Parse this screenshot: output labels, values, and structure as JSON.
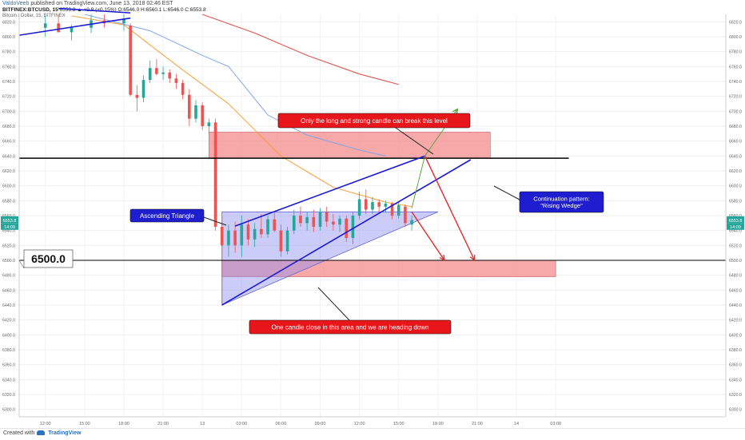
{
  "header": {
    "author": "ValdoVeeb",
    "published": "published on TradingView.com, June 13, 2018 02:46 EST",
    "symbol": "BITFINEX:BTCUSD, 15",
    "ohlc": "6553.8 ▲ +9.9 (+0.15%) O:6546.0 H:6560.1 L:6546.0 C:6553.8",
    "indicator": "Bitcoin / Dollar, 15, BITFINEX"
  },
  "footer": {
    "created_with": "Created with",
    "brand": "TradingView"
  },
  "colors": {
    "up": "#26a69a",
    "down": "#ef5350",
    "ema_fast": "#f59c33",
    "ema_mid": "#7ea5e8",
    "ema_slow": "#e0403a",
    "zone": "#f48c8c",
    "triangle": "#8f8ff0",
    "arrow_red": "#e12a2a",
    "arrow_green": "#4aa535",
    "callout_red": "#e8161b",
    "callout_blue": "#1e1ed0"
  },
  "annotations": {
    "callout_break": "Only the long and strong candle can break this level",
    "callout_ascending": "Ascending Triangle",
    "callout_continuation": "Continuation pattern:\n\"Rising Wedge\"",
    "callout_close": "One candle close in this area and we are heading down",
    "level_box": "6500.0",
    "price_tag_current": "6553.8",
    "price_tag_timer": "14:09"
  },
  "chart_data": {
    "type": "candlestick",
    "title": "BITFINEX:BTCUSD, 15",
    "y_ticks": [
      6820,
      6800,
      6780,
      6760,
      6740,
      6720,
      6700,
      6680,
      6660,
      6640,
      6620,
      6600,
      6580,
      6560,
      6540,
      6520,
      6500,
      6480,
      6460,
      6440,
      6420,
      6400,
      6380,
      6360,
      6340,
      6320,
      6300
    ],
    "ylim": [
      6290,
      6830
    ],
    "x_ticks": [
      "12:00",
      "15:00",
      "18:00",
      "21:00",
      "13",
      "03:00",
      "06:00",
      "09:00",
      "12:00",
      "15:00",
      "18:00",
      "21:00",
      "14",
      "03:00"
    ],
    "x_range_hours": [
      -14,
      40
    ],
    "horizontal_levels": [
      6637,
      6500
    ],
    "zones": [
      {
        "from": 6637,
        "to": 6672
      },
      {
        "from": 6478,
        "to": 6500
      }
    ],
    "candles": [
      {
        "t": -12.0,
        "o": 6812,
        "h": 6828,
        "l": 6800,
        "c": 6818
      },
      {
        "t": -11.0,
        "o": 6818,
        "h": 6830,
        "l": 6808,
        "c": 6806
      },
      {
        "t": -10.0,
        "o": 6806,
        "h": 6816,
        "l": 6795,
        "c": 6812
      },
      {
        "t": -8.5,
        "o": 6812,
        "h": 6830,
        "l": 6805,
        "c": 6822
      },
      {
        "t": -7.5,
        "o": 6822,
        "h": 6830,
        "l": 6812,
        "c": 6818
      },
      {
        "t": -6.0,
        "o": 6818,
        "h": 6830,
        "l": 6808,
        "c": 6824
      },
      {
        "t": -5.5,
        "o": 6815,
        "h": 6818,
        "l": 6720,
        "c": 6722
      },
      {
        "t": -5.0,
        "o": 6722,
        "h": 6735,
        "l": 6700,
        "c": 6718
      },
      {
        "t": -4.5,
        "o": 6718,
        "h": 6748,
        "l": 6712,
        "c": 6742
      },
      {
        "t": -4.0,
        "o": 6742,
        "h": 6768,
        "l": 6738,
        "c": 6758
      },
      {
        "t": -3.5,
        "o": 6758,
        "h": 6770,
        "l": 6748,
        "c": 6750
      },
      {
        "t": -3.0,
        "o": 6750,
        "h": 6760,
        "l": 6742,
        "c": 6752
      },
      {
        "t": -2.5,
        "o": 6752,
        "h": 6756,
        "l": 6738,
        "c": 6744
      },
      {
        "t": -2.0,
        "o": 6744,
        "h": 6750,
        "l": 6730,
        "c": 6738
      },
      {
        "t": -1.5,
        "o": 6738,
        "h": 6742,
        "l": 6716,
        "c": 6722
      },
      {
        "t": -1.0,
        "o": 6722,
        "h": 6730,
        "l": 6680,
        "c": 6690
      },
      {
        "t": -0.5,
        "o": 6690,
        "h": 6715,
        "l": 6685,
        "c": 6708
      },
      {
        "t": 0.0,
        "o": 6708,
        "h": 6712,
        "l": 6675,
        "c": 6680
      },
      {
        "t": 0.5,
        "o": 6680,
        "h": 6690,
        "l": 6670,
        "c": 6685
      },
      {
        "t": 1.0,
        "o": 6685,
        "h": 6690,
        "l": 6540,
        "c": 6545
      },
      {
        "t": 1.5,
        "o": 6545,
        "h": 6560,
        "l": 6440,
        "c": 6520
      },
      {
        "t": 2.0,
        "o": 6520,
        "h": 6548,
        "l": 6505,
        "c": 6540
      },
      {
        "t": 2.5,
        "o": 6540,
        "h": 6552,
        "l": 6510,
        "c": 6520
      },
      {
        "t": 3.0,
        "o": 6520,
        "h": 6560,
        "l": 6505,
        "c": 6548
      },
      {
        "t": 3.5,
        "o": 6548,
        "h": 6555,
        "l": 6520,
        "c": 6528
      },
      {
        "t": 4.0,
        "o": 6528,
        "h": 6550,
        "l": 6518,
        "c": 6542
      },
      {
        "t": 4.5,
        "o": 6542,
        "h": 6562,
        "l": 6530,
        "c": 6535
      },
      {
        "t": 5.0,
        "o": 6535,
        "h": 6560,
        "l": 6530,
        "c": 6555
      },
      {
        "t": 5.5,
        "o": 6555,
        "h": 6565,
        "l": 6538,
        "c": 6540
      },
      {
        "t": 6.0,
        "o": 6540,
        "h": 6548,
        "l": 6505,
        "c": 6512
      },
      {
        "t": 6.5,
        "o": 6512,
        "h": 6545,
        "l": 6508,
        "c": 6540
      },
      {
        "t": 7.0,
        "o": 6540,
        "h": 6568,
        "l": 6535,
        "c": 6560
      },
      {
        "t": 7.5,
        "o": 6560,
        "h": 6572,
        "l": 6545,
        "c": 6550
      },
      {
        "t": 8.0,
        "o": 6550,
        "h": 6565,
        "l": 6540,
        "c": 6558
      },
      {
        "t": 8.5,
        "o": 6558,
        "h": 6568,
        "l": 6538,
        "c": 6545
      },
      {
        "t": 9.0,
        "o": 6545,
        "h": 6570,
        "l": 6540,
        "c": 6565
      },
      {
        "t": 9.5,
        "o": 6565,
        "h": 6572,
        "l": 6545,
        "c": 6552
      },
      {
        "t": 10.0,
        "o": 6552,
        "h": 6562,
        "l": 6540,
        "c": 6548
      },
      {
        "t": 10.5,
        "o": 6548,
        "h": 6560,
        "l": 6538,
        "c": 6556
      },
      {
        "t": 11.0,
        "o": 6556,
        "h": 6560,
        "l": 6525,
        "c": 6530
      },
      {
        "t": 11.5,
        "o": 6530,
        "h": 6565,
        "l": 6522,
        "c": 6560
      },
      {
        "t": 12.0,
        "o": 6560,
        "h": 6592,
        "l": 6555,
        "c": 6582
      },
      {
        "t": 12.5,
        "o": 6582,
        "h": 6595,
        "l": 6562,
        "c": 6568
      },
      {
        "t": 13.0,
        "o": 6568,
        "h": 6585,
        "l": 6562,
        "c": 6578
      },
      {
        "t": 13.5,
        "o": 6578,
        "h": 6582,
        "l": 6565,
        "c": 6572
      },
      {
        "t": 14.0,
        "o": 6572,
        "h": 6580,
        "l": 6564,
        "c": 6576
      },
      {
        "t": 14.5,
        "o": 6576,
        "h": 6578,
        "l": 6555,
        "c": 6560
      },
      {
        "t": 15.0,
        "o": 6560,
        "h": 6578,
        "l": 6556,
        "c": 6574
      },
      {
        "t": 15.5,
        "o": 6572,
        "h": 6575,
        "l": 6545,
        "c": 6550
      },
      {
        "t": 16.0,
        "o": 6548,
        "h": 6560,
        "l": 6540,
        "c": 6554
      }
    ],
    "series": [
      {
        "name": "ema_fast",
        "points": [
          [
            -10,
            6828
          ],
          [
            -6,
            6816
          ],
          [
            -2,
            6762
          ],
          [
            2,
            6710
          ],
          [
            6,
            6640
          ],
          [
            10,
            6598
          ],
          [
            14,
            6578
          ],
          [
            16,
            6572
          ]
        ]
      },
      {
        "name": "ema_mid",
        "points": [
          [
            -9,
            6830
          ],
          [
            -4,
            6808
          ],
          [
            0,
            6775
          ],
          [
            2,
            6760
          ],
          [
            5,
            6695
          ],
          [
            8,
            6668
          ],
          [
            12,
            6648
          ],
          [
            14,
            6640
          ]
        ]
      },
      {
        "name": "ema_slow",
        "points": [
          [
            0,
            6830
          ],
          [
            4,
            6805
          ],
          [
            8,
            6775
          ],
          [
            12,
            6750
          ],
          [
            15,
            6736
          ]
        ]
      }
    ],
    "trendlines": [
      {
        "name": "wedge-upper",
        "from": [
          2.5,
          6546
        ],
        "to": [
          17.0,
          6640
        ]
      },
      {
        "name": "wedge-lower",
        "from": [
          1.5,
          6440
        ],
        "to": [
          20.5,
          6635
        ]
      },
      {
        "name": "top-left-wedge",
        "from": [
          -14.0,
          6802
        ],
        "to": [
          -5.5,
          6825
        ]
      },
      {
        "name": "top-left-wedge-2",
        "from": [
          -11.0,
          6838
        ],
        "to": [
          -5.5,
          6832
        ]
      }
    ],
    "triangle": {
      "points": [
        [
          1.5,
          6565
        ],
        [
          18.0,
          6565
        ],
        [
          1.5,
          6440
        ]
      ]
    },
    "projections": [
      {
        "color": "red",
        "from": [
          16.0,
          6565
        ],
        "to": [
          18.5,
          6500
        ]
      },
      {
        "color": "red",
        "from": [
          17.0,
          6640
        ],
        "to": [
          20.8,
          6500
        ]
      },
      {
        "color": "green",
        "from": [
          16.0,
          6570
        ],
        "to": [
          17.0,
          6640
        ]
      },
      {
        "color": "green",
        "from": [
          17.0,
          6640
        ],
        "to": [
          19.5,
          6703
        ]
      }
    ]
  }
}
